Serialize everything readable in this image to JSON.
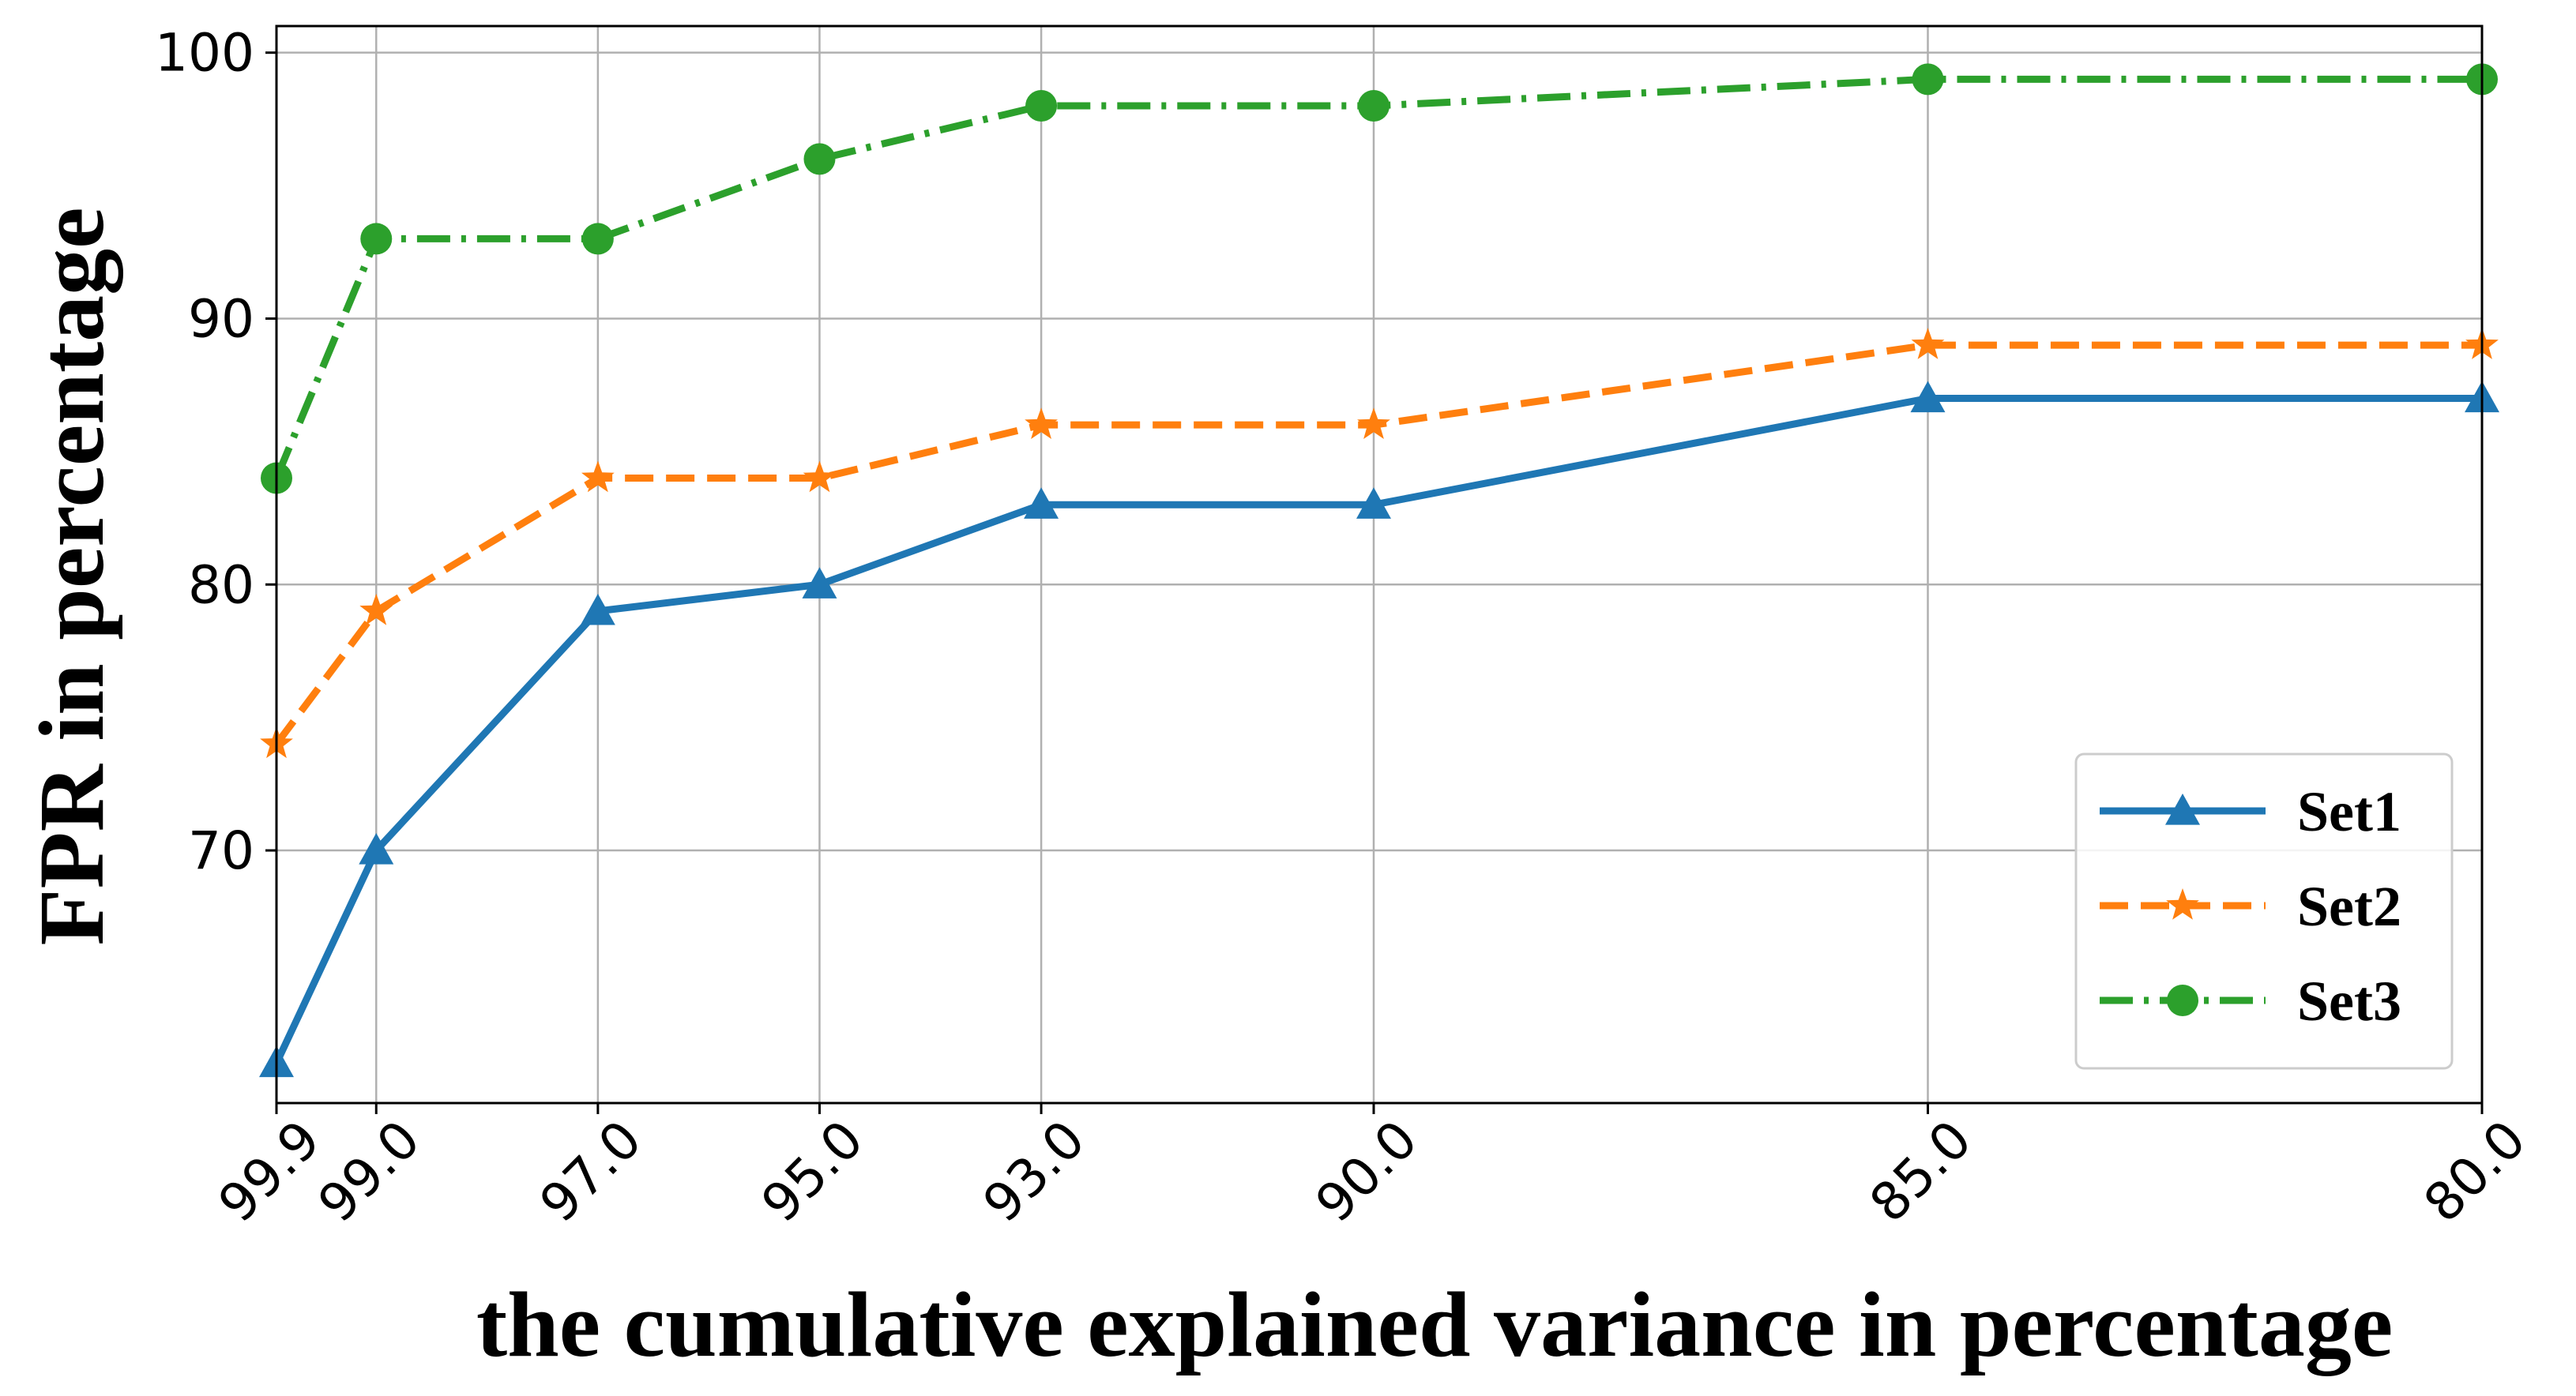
{
  "chart_data": {
    "type": "line",
    "title": "",
    "xlabel": "the cumulative explained variance in percentage",
    "ylabel": "FPR in percentage",
    "x": [
      99.9,
      99.0,
      97.0,
      95.0,
      93.0,
      90.0,
      85.0,
      80.0
    ],
    "x_tick_labels": [
      "99.9",
      "99.0",
      "97.0",
      "95.0",
      "93.0",
      "90.0",
      "85.0",
      "80.0"
    ],
    "x_axis_inverted": true,
    "xlim": [
      99.9,
      80.0
    ],
    "ylim": [
      60.5,
      101
    ],
    "y_ticks": [
      70,
      80,
      90,
      100
    ],
    "y_tick_labels": [
      "70",
      "80",
      "90",
      "100"
    ],
    "grid": true,
    "legend_position": "lower-right",
    "series": [
      {
        "name": "Set1",
        "values": [
          62,
          70,
          79,
          80,
          83,
          83,
          87,
          87
        ],
        "color": "#1f77b4",
        "marker": "triangle",
        "line_style": "solid"
      },
      {
        "name": "Set2",
        "values": [
          74,
          79,
          84,
          84,
          86,
          86,
          89,
          89
        ],
        "color": "#ff7f0e",
        "marker": "star",
        "line_style": "dashed"
      },
      {
        "name": "Set3",
        "values": [
          84,
          93,
          93,
          96,
          98,
          98,
          99,
          99
        ],
        "color": "#2ca02c",
        "marker": "circle",
        "line_style": "dash-dot"
      }
    ]
  }
}
